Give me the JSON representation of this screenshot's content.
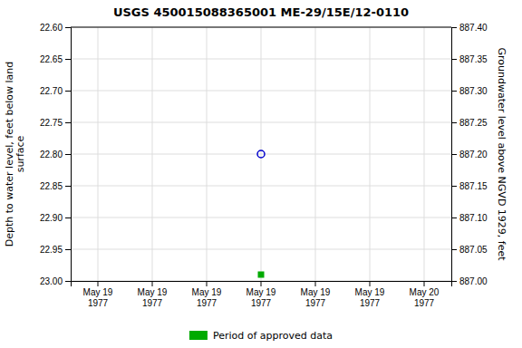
{
  "chart_data": {
    "type": "scatter",
    "title": "USGS 450015088365001 ME-29/15E/12-0110",
    "categories": [
      "May 19\n1977",
      "May 19\n1977",
      "May 19\n1977",
      "May 19\n1977",
      "May 19\n1977",
      "May 19\n1977",
      "May 20\n1977"
    ],
    "series": [
      {
        "color": "#0000cc",
        "marker": "circle-open",
        "values": [
          null,
          null,
          null,
          22.8,
          null,
          null,
          null
        ]
      },
      {
        "name": "Period of approved data",
        "color": "#00aa00",
        "marker": "square",
        "values": [
          null,
          null,
          null,
          22.99,
          null,
          null,
          null
        ]
      }
    ],
    "y_label": "Depth to water level, feet below land\nsurface",
    "y2_label": "Groundwater level above NGVD 1929, feet",
    "ylim": [
      23.0,
      22.6
    ],
    "yticks": [
      {
        "value": 22.6,
        "label": "22.60"
      },
      22.65,
      {
        "value": 22.7,
        "label": "22.70"
      },
      22.75,
      {
        "value": 22.8,
        "label": "22.80"
      },
      22.85,
      {
        "value": 22.9,
        "label": "22.90"
      },
      22.95,
      {
        "value": 23,
        "label": "23.00"
      }
    ],
    "y2lim": [
      887.0,
      887.4
    ],
    "y2ticks": [
      {
        "value": 887.4,
        "label": "887.40"
      },
      887.35,
      {
        "value": 887.3,
        "label": "887.30"
      },
      887.25,
      {
        "value": 887.2,
        "label": "887.20"
      },
      887.15,
      {
        "value": 887.1,
        "label": "887.10"
      },
      887.05,
      {
        "value": 887,
        "label": "887.00"
      }
    ],
    "grid": true,
    "legend": "bottom"
  }
}
